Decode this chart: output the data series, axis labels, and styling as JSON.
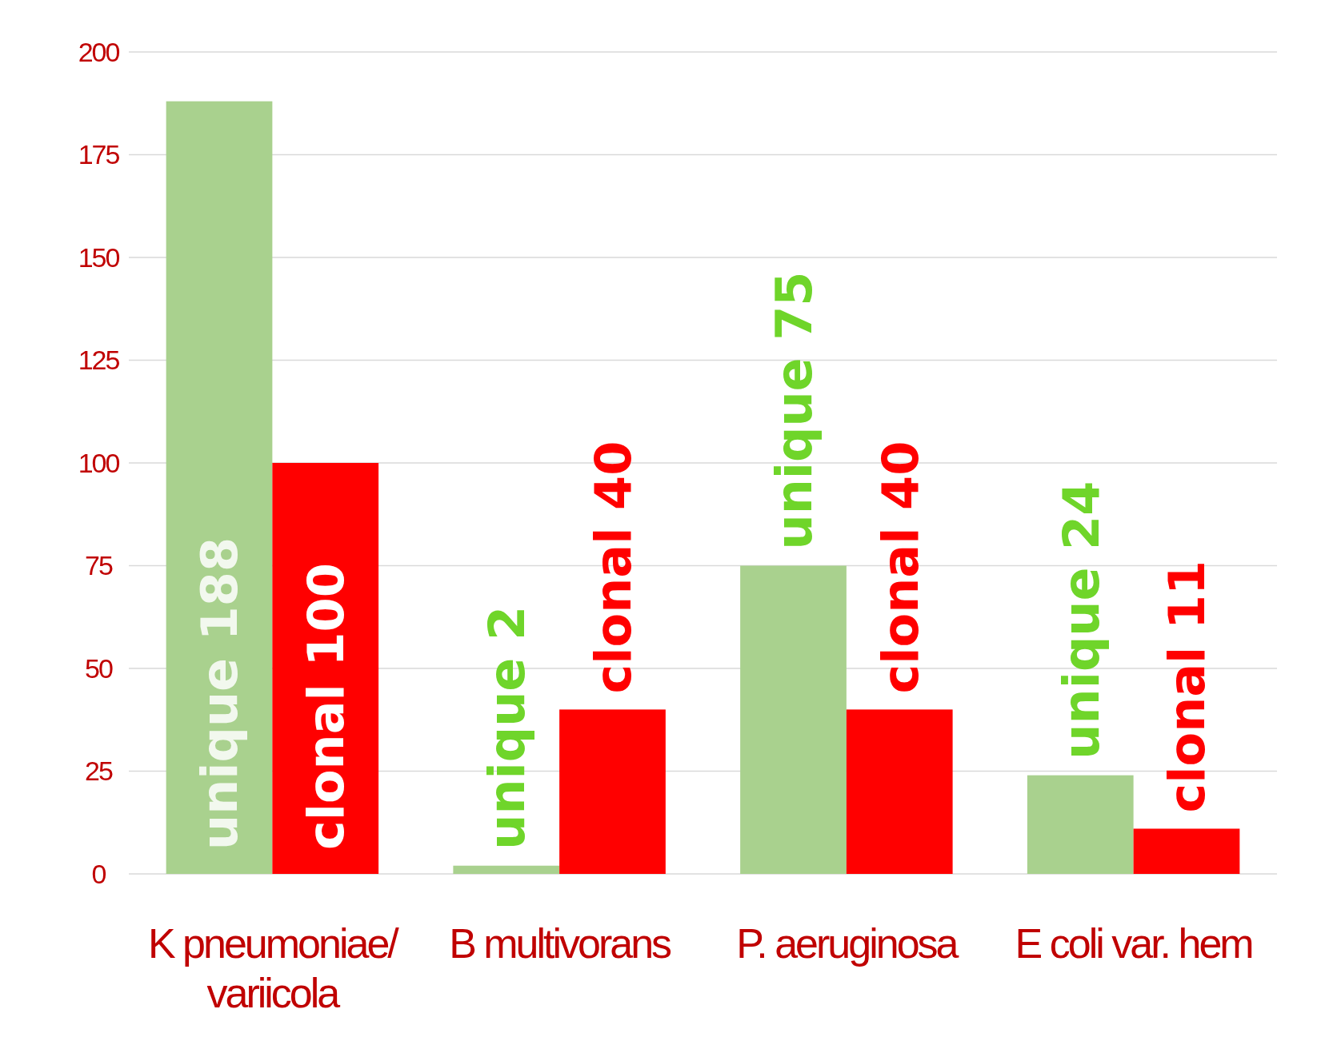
{
  "chart_data": {
    "type": "bar",
    "categories": [
      "K pneumoniae/ variicola",
      "B multivorans",
      "P. aeruginosa",
      "E coli var. hem"
    ],
    "series": [
      {
        "color": "#a9d18e",
        "values": [
          188,
          2,
          75,
          24
        ],
        "value_labels": [
          "unique 188",
          "unique 2",
          "unique 75",
          "unique 24"
        ]
      },
      {
        "color": "#ff0000",
        "values": [
          100,
          40,
          40,
          11
        ],
        "value_labels": [
          "clonal 100",
          "clonal 40",
          "clonal 40",
          "clonal 11"
        ]
      }
    ],
    "ylim": [
      0,
      200
    ],
    "yticks": [
      0,
      25,
      50,
      75,
      100,
      125,
      150,
      175,
      200
    ],
    "grid": "y"
  }
}
